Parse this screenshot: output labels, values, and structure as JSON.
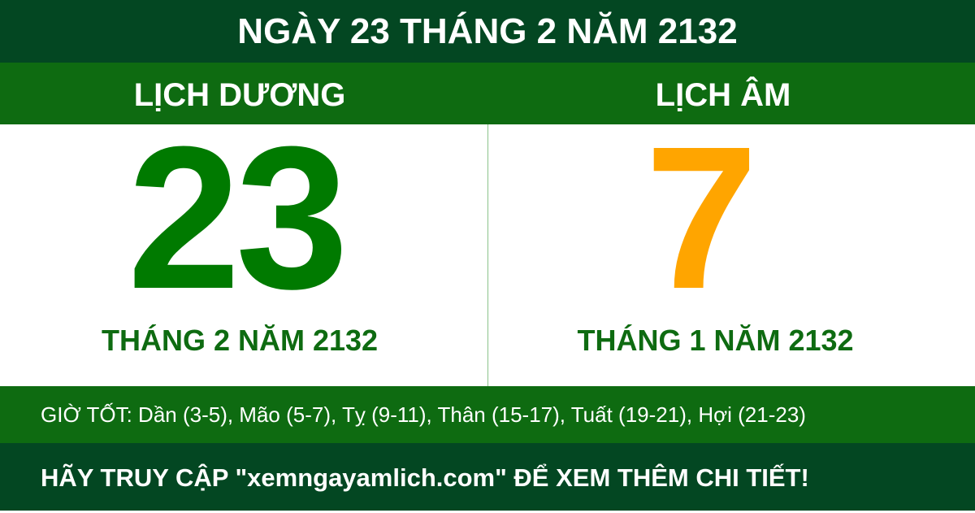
{
  "title": "NGÀY 23 THÁNG 2 NĂM 2132",
  "solar": {
    "header": "LỊCH DƯƠNG",
    "day": "23",
    "month_year": "THÁNG 2 NĂM 2132",
    "color": "#007a00"
  },
  "lunar": {
    "header": "LỊCH ÂM",
    "day": "7",
    "month_year": "THÁNG 1 NĂM 2132",
    "color": "#ffa500"
  },
  "good_hours": "GIỜ TỐT: Dần (3-5), Mão (5-7), Tỵ (9-11), Thân (15-17), Tuất (19-21), Hợi (21-23)",
  "footer": "HÃY TRUY CẬP \"xemngayamlich.com\" ĐỂ XEM THÊM CHI TIẾT!"
}
